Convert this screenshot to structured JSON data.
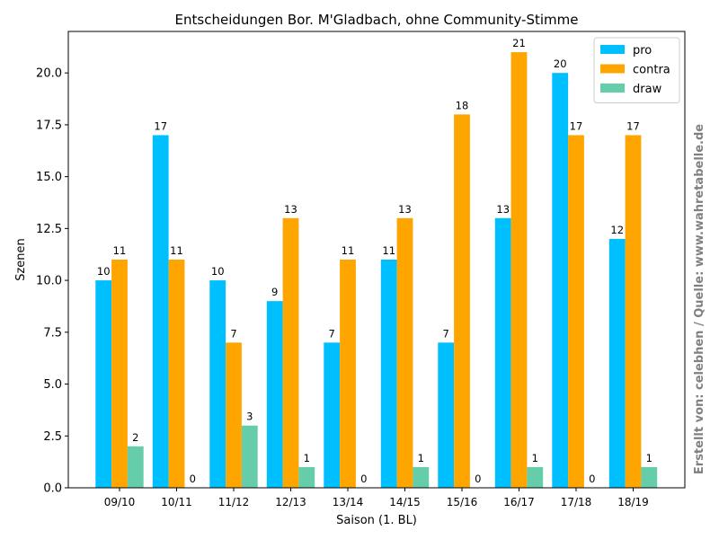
{
  "chart_data": {
    "type": "bar",
    "title": "Entscheidungen Bor. M'Gladbach, ohne Community-Stimme",
    "xlabel": "Saison (1. BL)",
    "ylabel": "Szenen",
    "ylim": [
      0,
      22
    ],
    "yticks": [
      "0.0",
      "2.5",
      "5.0",
      "7.5",
      "10.0",
      "12.5",
      "15.0",
      "17.5",
      "20.0"
    ],
    "categories": [
      "09/10",
      "10/11",
      "11/12",
      "12/13",
      "13/14",
      "14/15",
      "15/16",
      "16/17",
      "17/18",
      "18/19"
    ],
    "series": [
      {
        "name": "pro",
        "color": "#00bfff",
        "values": [
          10,
          17,
          10,
          9,
          7,
          11,
          7,
          13,
          20,
          12
        ]
      },
      {
        "name": "contra",
        "color": "#ffa500",
        "values": [
          11,
          11,
          7,
          13,
          11,
          13,
          18,
          21,
          17,
          17
        ]
      },
      {
        "name": "draw",
        "color": "#66cdaa",
        "values": [
          2,
          0,
          3,
          1,
          0,
          1,
          0,
          1,
          0,
          1
        ]
      }
    ],
    "legend_position": "top-right",
    "grid": false,
    "credit": "Erstellt von: celebhen / Quelle: www.wahretabelle.de"
  }
}
